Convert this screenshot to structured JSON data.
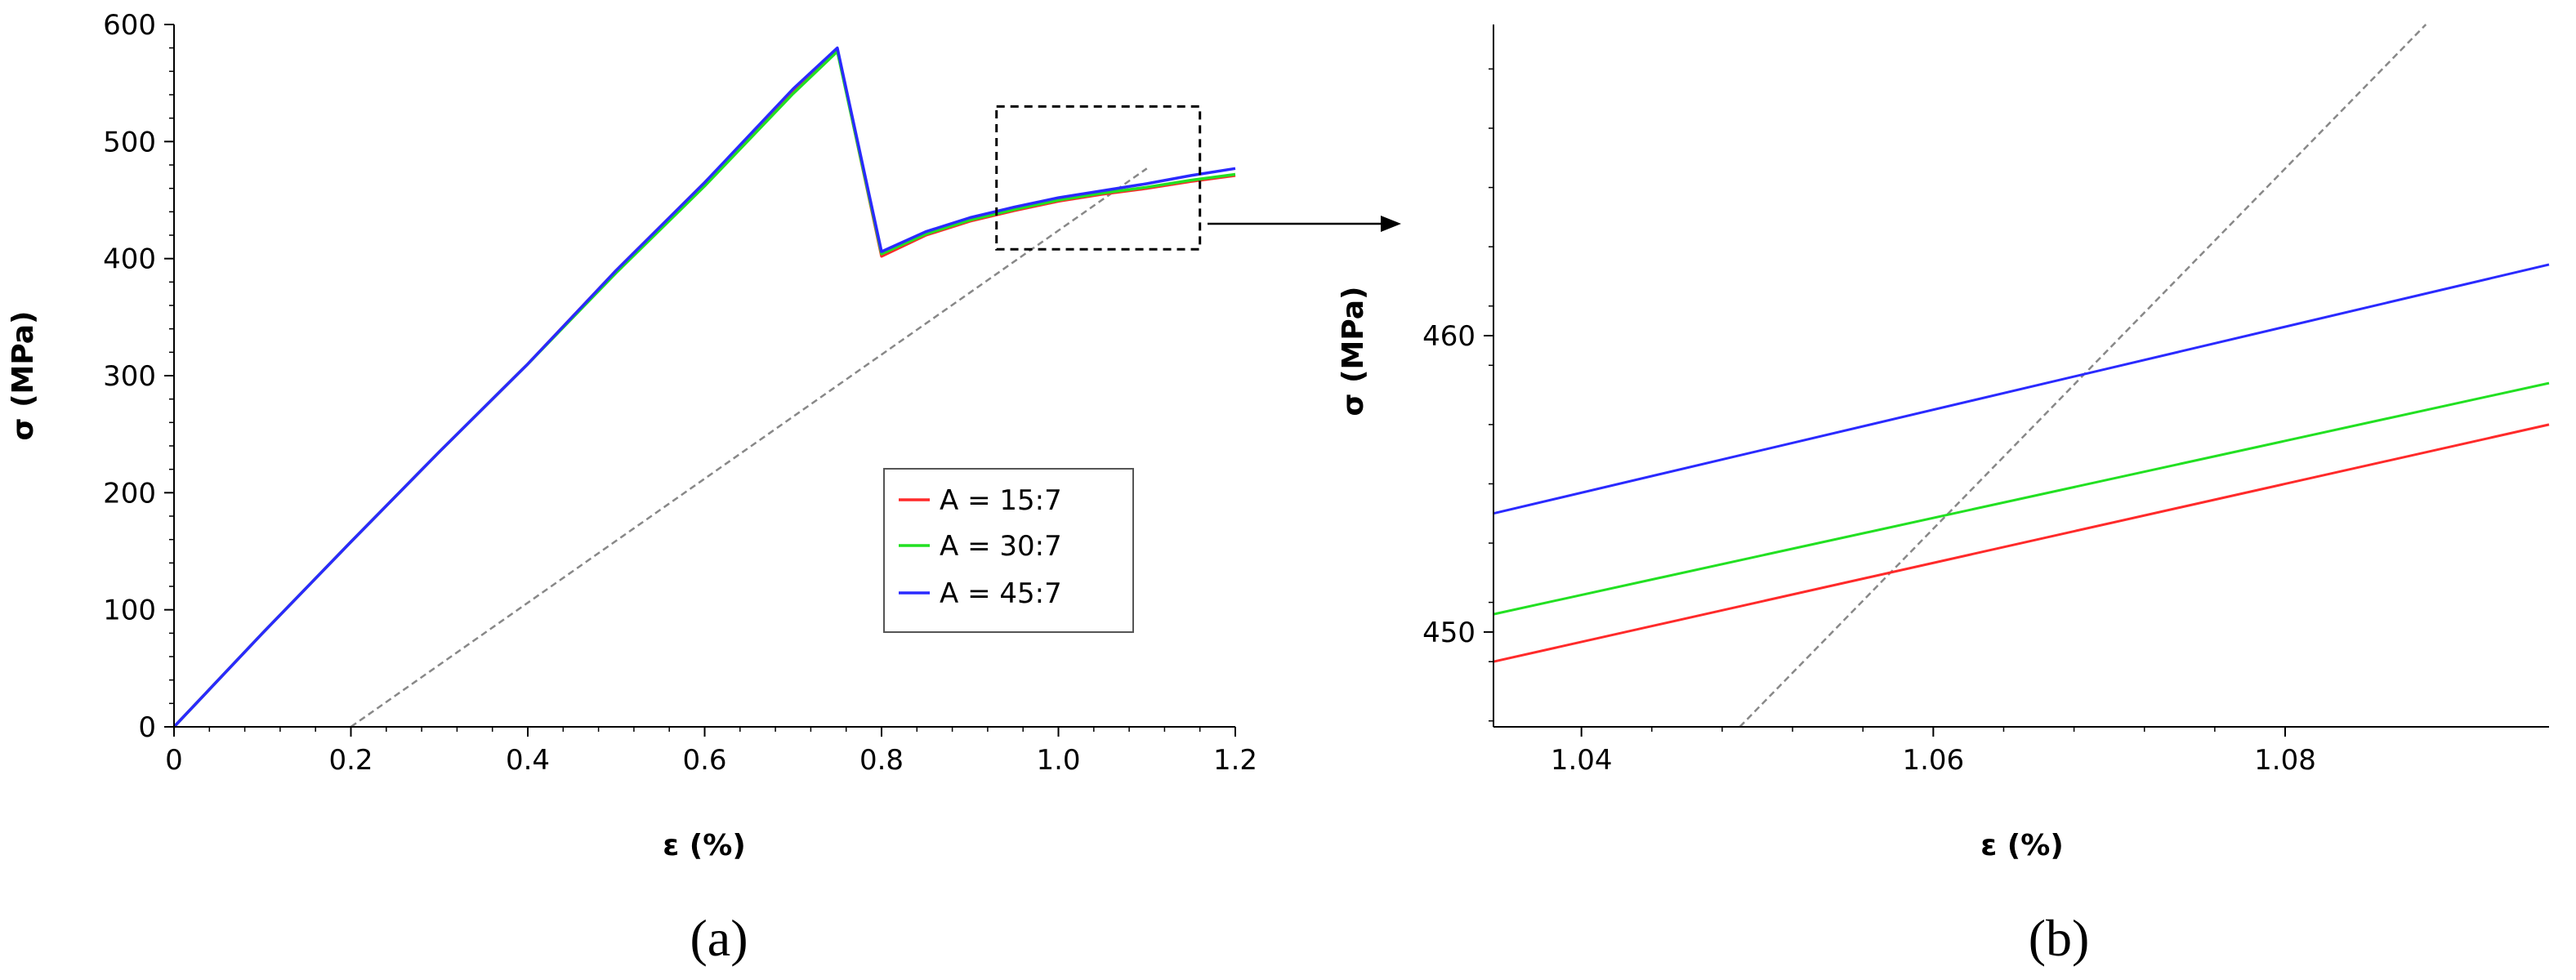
{
  "chart_data": [
    {
      "panel_label": "(a)",
      "type": "line",
      "xlabel": "ε (%)",
      "ylabel": "σ (MPa)",
      "xlim": [
        0,
        1.2
      ],
      "ylim": [
        0,
        600
      ],
      "xticks": [
        0,
        0.2,
        0.4,
        0.6,
        0.8,
        1.0,
        1.2
      ],
      "xtick_labels": [
        "0",
        "0.2",
        "0.4",
        "0.6",
        "0.8",
        "1.0",
        "1.2"
      ],
      "yticks": [
        0,
        100,
        200,
        300,
        400,
        500,
        600
      ],
      "ytick_labels": [
        "0",
        "100",
        "200",
        "300",
        "400",
        "500",
        "600"
      ],
      "legend": {
        "placement": "center-right",
        "entries": [
          "A = 15:7",
          "A = 30:7",
          "A = 45:7"
        ]
      },
      "series": [
        {
          "name": "A = 15:7",
          "color": "#ff2a2a",
          "x": [
            0,
            0.1,
            0.2,
            0.3,
            0.4,
            0.5,
            0.6,
            0.7,
            0.75,
            0.8,
            0.85,
            0.9,
            0.95,
            1.0,
            1.05,
            1.1,
            1.15,
            1.2
          ],
          "y": [
            0,
            80,
            158,
            235,
            310,
            390,
            465,
            543,
            578,
            402,
            420,
            432,
            441,
            449,
            455,
            460,
            466,
            471
          ]
        },
        {
          "name": "A = 30:7",
          "color": "#22e022",
          "x": [
            0,
            0.1,
            0.2,
            0.3,
            0.4,
            0.5,
            0.6,
            0.7,
            0.75,
            0.8,
            0.85,
            0.9,
            0.95,
            1.0,
            1.05,
            1.1,
            1.15,
            1.2
          ],
          "y": [
            0,
            80,
            158,
            235,
            310,
            388,
            462,
            541,
            577,
            404,
            421,
            433,
            442,
            450,
            456,
            461,
            467,
            472
          ]
        },
        {
          "name": "A = 45:7",
          "color": "#2a2aff",
          "x": [
            0,
            0.1,
            0.2,
            0.3,
            0.4,
            0.5,
            0.6,
            0.7,
            0.75,
            0.8,
            0.85,
            0.9,
            0.95,
            1.0,
            1.05,
            1.1,
            1.15,
            1.2
          ],
          "y": [
            0,
            80,
            158,
            235,
            310,
            390,
            465,
            545,
            580,
            406,
            423,
            435,
            444,
            452,
            458,
            464,
            471,
            477
          ]
        }
      ],
      "offset_line": {
        "color": "#888888",
        "x": [
          0.2,
          1.1
        ],
        "y": [
          0,
          477
        ]
      },
      "zoom_box": {
        "xlim": [
          0.93,
          1.16
        ],
        "ylim": [
          408,
          530
        ]
      }
    },
    {
      "panel_label": "(b)",
      "type": "line",
      "xlabel": "ε (%)",
      "ylabel": "σ (MPa)",
      "xlim": [
        1.035,
        1.095
      ],
      "ylim": [
        446.8,
        470.5
      ],
      "xticks": [
        1.04,
        1.06,
        1.08
      ],
      "xtick_labels": [
        "1.04",
        "1.06",
        "1.08"
      ],
      "yticks": [
        450,
        460
      ],
      "ytick_labels": [
        "450",
        "460"
      ],
      "series": [
        {
          "name": "A = 15:7",
          "color": "#ff2a2a",
          "x": [
            1.035,
            1.095
          ],
          "y": [
            449.0,
            457.0
          ]
        },
        {
          "name": "A = 30:7",
          "color": "#22e022",
          "x": [
            1.035,
            1.095
          ],
          "y": [
            450.6,
            458.4
          ]
        },
        {
          "name": "A = 45:7",
          "color": "#2a2aff",
          "x": [
            1.035,
            1.095
          ],
          "y": [
            454.0,
            462.4
          ]
        }
      ],
      "offset_line": {
        "color": "#888888",
        "x": [
          1.049,
          1.088
        ],
        "y": [
          446.8,
          470.5
        ]
      }
    }
  ]
}
